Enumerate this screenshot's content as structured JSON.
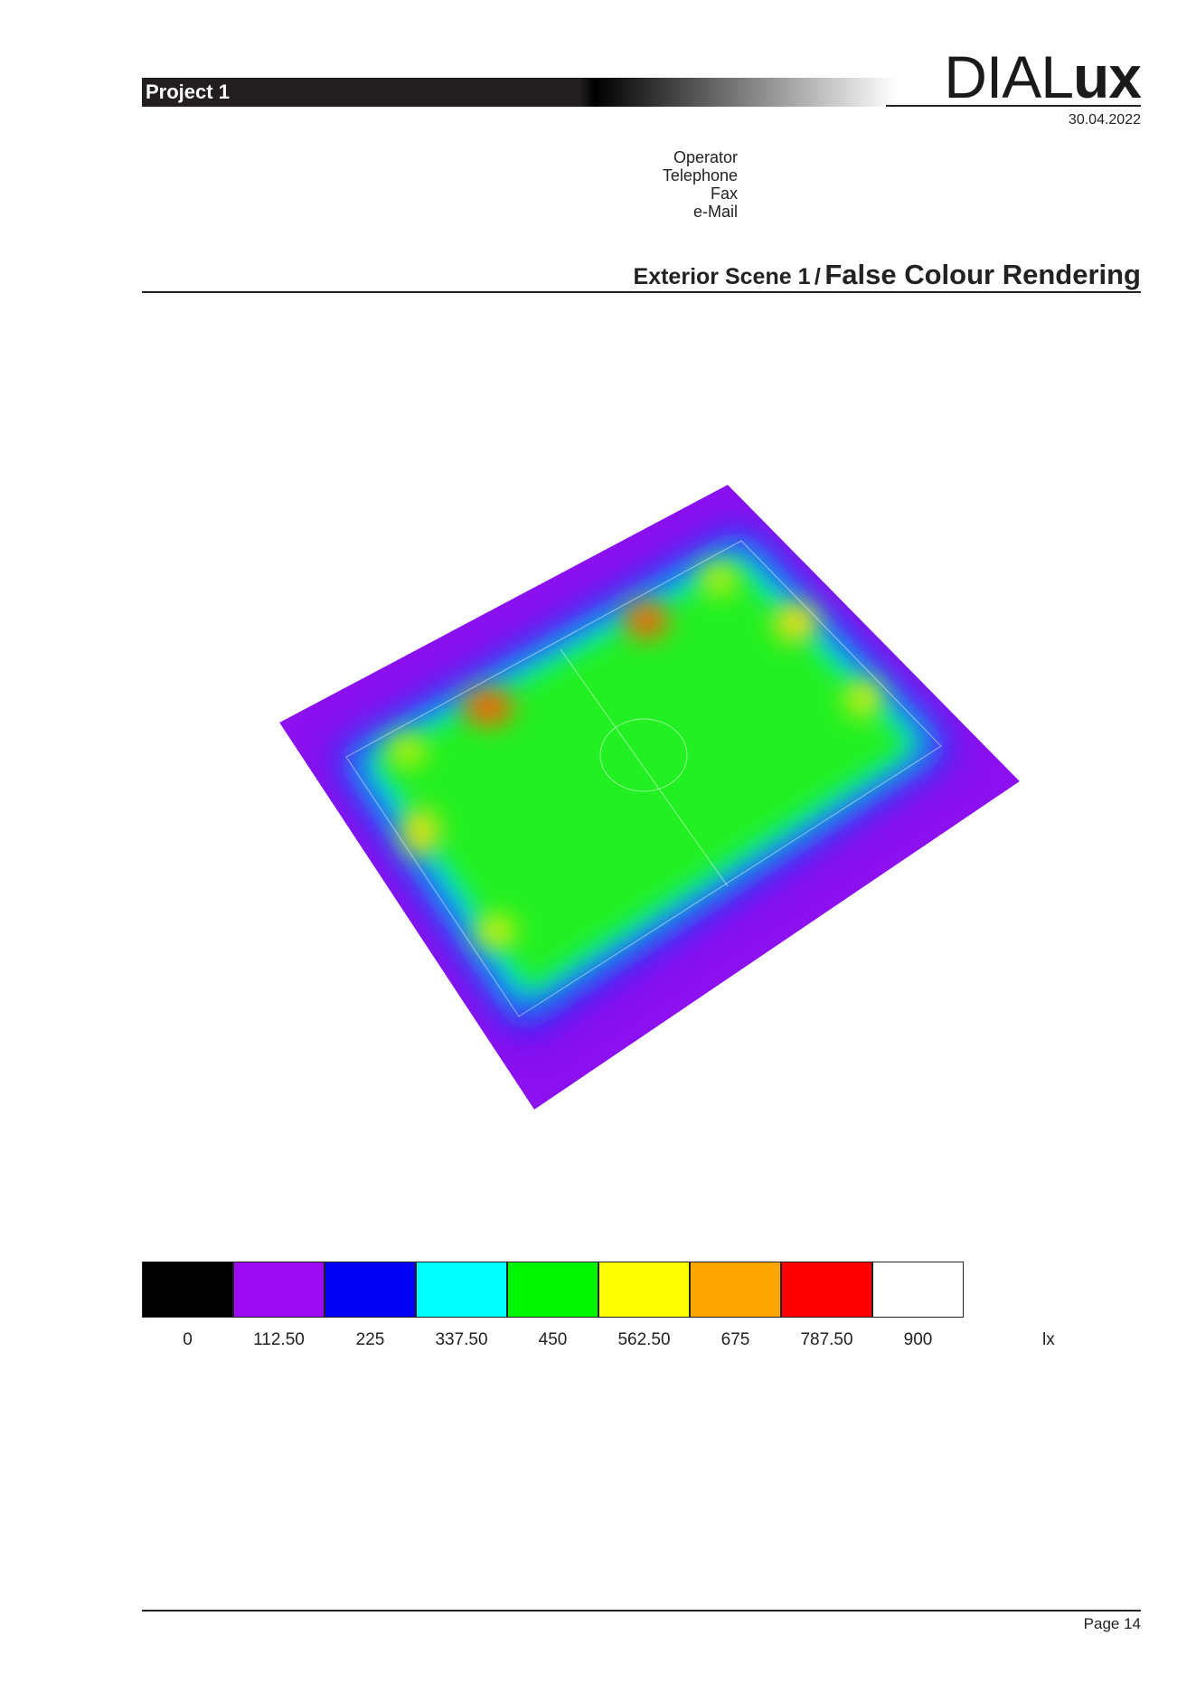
{
  "header": {
    "project": "Project 1",
    "logo": {
      "light": "DIAL",
      "bold": "ux"
    },
    "date": "30.04.2022"
  },
  "contact": [
    "Operator",
    "Telephone",
    "Fax",
    "e-Mail"
  ],
  "section": {
    "scene": "Exterior Scene 1",
    "separator": "/",
    "view": "False Colour Rendering"
  },
  "legend": {
    "items": [
      {
        "label": "0",
        "color": "#000000"
      },
      {
        "label": "112.50",
        "color": "#9b0cf5"
      },
      {
        "label": "225",
        "color": "#0000f5"
      },
      {
        "label": "337.50",
        "color": "#00ffff"
      },
      {
        "label": "450",
        "color": "#00f500"
      },
      {
        "label": "562.50",
        "color": "#ffff00"
      },
      {
        "label": "675",
        "color": "#ffa500"
      },
      {
        "label": "787.50",
        "color": "#ff0000"
      },
      {
        "label": "900",
        "color": "#ffffff"
      }
    ],
    "unit": "lx"
  },
  "footer": {
    "page": "Page 14"
  }
}
